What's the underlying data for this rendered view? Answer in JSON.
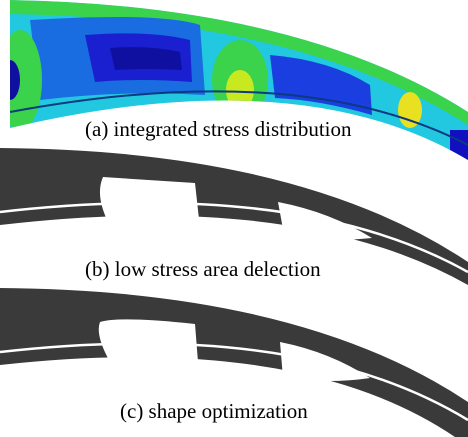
{
  "panels": [
    {
      "caption": "(a) integrated stress distribution"
    },
    {
      "caption": "(b) low stress area delection"
    },
    {
      "caption": "(c) shape optimization"
    }
  ]
}
